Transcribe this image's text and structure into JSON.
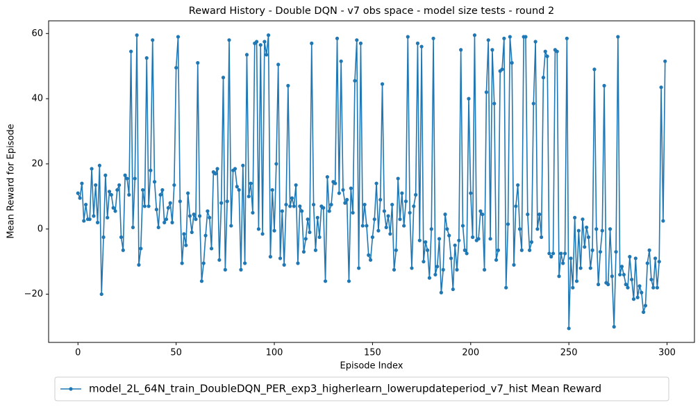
{
  "chart_data": {
    "type": "line",
    "title": "Reward History - Double DQN - v7 obs space - model size tests - round 2",
    "x_label": "Episode Index",
    "y_label": "Mean Reward for Episode",
    "x": [
      0,
      1,
      2,
      3,
      4,
      5,
      6,
      7,
      8,
      9,
      10,
      11,
      12,
      13,
      14,
      15,
      16,
      17,
      18,
      19,
      20,
      21,
      22,
      23,
      24,
      25,
      26,
      27,
      28,
      29,
      30,
      31,
      32,
      33,
      34,
      35,
      36,
      37,
      38,
      39,
      40,
      41,
      42,
      43,
      44,
      45,
      46,
      47,
      48,
      49,
      50,
      51,
      52,
      53,
      54,
      55,
      56,
      57,
      58,
      59,
      60,
      61,
      62,
      63,
      64,
      65,
      66,
      67,
      68,
      69,
      70,
      71,
      72,
      73,
      74,
      75,
      76,
      77,
      78,
      79,
      80,
      81,
      82,
      83,
      84,
      85,
      86,
      87,
      88,
      89,
      90,
      91,
      92,
      93,
      94,
      95,
      96,
      97,
      98,
      99,
      100,
      101,
      102,
      103,
      104,
      105,
      106,
      107,
      108,
      109,
      110,
      111,
      112,
      113,
      114,
      115,
      116,
      117,
      118,
      119,
      120,
      121,
      122,
      123,
      124,
      125,
      126,
      127,
      128,
      129,
      130,
      131,
      132,
      133,
      134,
      135,
      136,
      137,
      138,
      139,
      140,
      141,
      142,
      143,
      144,
      145,
      146,
      147,
      148,
      149,
      150,
      151,
      152,
      153,
      154,
      155,
      156,
      157,
      158,
      159,
      160,
      161,
      162,
      163,
      164,
      165,
      166,
      167,
      168,
      169,
      170,
      171,
      172,
      173,
      174,
      175,
      176,
      177,
      178,
      179,
      180,
      181,
      182,
      183,
      184,
      185,
      186,
      187,
      188,
      189,
      190,
      191,
      192,
      193,
      194,
      195,
      196,
      197,
      198,
      199,
      200,
      201,
      202,
      203,
      204,
      205,
      206,
      207,
      208,
      209,
      210,
      211,
      212,
      213,
      214,
      215,
      216,
      217,
      218,
      219,
      220,
      221,
      222,
      223,
      224,
      225,
      226,
      227,
      228,
      229,
      230,
      231,
      232,
      233,
      234,
      235,
      236,
      237,
      238,
      239,
      240,
      241,
      242,
      243,
      244,
      245,
      246,
      247,
      248,
      249,
      250,
      251,
      252,
      253,
      254,
      255,
      256,
      257,
      258,
      259,
      260,
      261,
      262,
      263,
      264,
      265,
      266,
      267,
      268,
      269,
      270,
      271,
      272,
      273,
      274,
      275,
      276,
      277,
      278,
      279,
      280,
      281,
      282,
      283,
      284,
      285,
      286,
      287,
      288,
      289,
      290,
      291,
      292,
      293,
      294,
      295,
      296,
      297,
      298,
      299
    ],
    "series": [
      {
        "name": "model_2L_64N_train_DoubleDQN_PER_exp3_higherlearn_lowerupdateperiod_v7_hist Mean Reward",
        "color": "#1f77b4",
        "values": [
          11,
          9.5,
          14,
          2.5,
          7.5,
          3,
          3,
          18.5,
          4,
          13.5,
          2,
          19.5,
          -20,
          -2.5,
          16.5,
          3.5,
          11.5,
          10.5,
          6.5,
          5.5,
          12,
          13.5,
          -2.5,
          -6.5,
          16.5,
          15.5,
          10.5,
          54.5,
          0.5,
          15.5,
          59.5,
          -11,
          -6,
          12,
          7,
          52.5,
          7,
          18,
          58,
          14.5,
          6,
          0.5,
          10.5,
          12,
          2,
          3,
          6.5,
          8,
          2,
          13.5,
          49.5,
          59,
          8.5,
          -10.5,
          -1.5,
          -5,
          11,
          4,
          -1,
          4.5,
          3,
          51,
          4,
          -16,
          -10.5,
          -2,
          5.5,
          3.5,
          -6,
          17.5,
          17,
          18.5,
          -9.5,
          8,
          46.5,
          -12.5,
          8.5,
          58,
          1,
          18,
          18.5,
          13,
          12,
          -12.5,
          19.5,
          -10.5,
          53.5,
          10,
          14,
          5,
          57,
          57.5,
          0,
          56.5,
          -1.5,
          57.5,
          53.5,
          59.5,
          -8.5,
          12,
          -0.5,
          20,
          50.5,
          -9,
          5.5,
          -11,
          7.5,
          44,
          7,
          9.5,
          7,
          13.5,
          -10.5,
          7,
          5.5,
          -7,
          -3,
          3,
          -1,
          57,
          7.5,
          -6.5,
          3.5,
          -2.5,
          7,
          6.5,
          -16,
          16,
          5.5,
          7.5,
          14.5,
          14,
          58.5,
          11,
          51.5,
          12,
          8,
          9,
          -16,
          12.5,
          5,
          45.5,
          58,
          -12,
          57,
          1,
          7.5,
          1,
          -8,
          -9.5,
          -2.5,
          3,
          14,
          -0.5,
          9,
          44.5,
          5.5,
          0.5,
          4,
          -1.5,
          7.5,
          -12.5,
          -6.5,
          15.5,
          3,
          11,
          1,
          8.5,
          59,
          5,
          -12,
          7,
          10.5,
          57,
          -3.5,
          56,
          -10,
          -4,
          -6.5,
          -15,
          0,
          58.5,
          -14,
          -11.5,
          -3,
          -19.5,
          -12.5,
          4.5,
          0,
          -2,
          -9,
          -18.5,
          -5,
          -12.5,
          -3.5,
          55,
          1,
          -6.5,
          -7.5,
          40,
          11,
          -2.5,
          59.5,
          -3.5,
          -3,
          5.5,
          4.5,
          -12.5,
          42,
          58,
          -3,
          55,
          38.5,
          -9.5,
          -6.5,
          48.5,
          49,
          58.5,
          -18,
          1.5,
          59,
          51,
          -11,
          7,
          13.5,
          0,
          -6.5,
          59,
          59,
          4.5,
          -6.5,
          -4,
          38.5,
          57.5,
          0,
          4.5,
          -2.5,
          46.5,
          54.5,
          53,
          -7.5,
          -8.5,
          -7.5,
          55,
          54.5,
          -14.5,
          -7.5,
          -10.5,
          -7.5,
          58.5,
          -30.5,
          -9,
          -18,
          3.5,
          -16,
          -0.5,
          -12,
          3,
          -5.5,
          0.5,
          -2.5,
          -12,
          -6.5,
          49,
          0,
          -17,
          -7,
          -0.5,
          44,
          -16.5,
          -17,
          0,
          -14.5,
          -30,
          -7,
          59,
          -14,
          -11.5,
          -14,
          -17,
          -18,
          -8.5,
          -15.5,
          -21.5,
          -9,
          -21,
          -17.5,
          -19.5,
          -25.5,
          -23.5,
          -10.5,
          -6.5,
          -15.5,
          -18,
          -9,
          -18,
          -10,
          43.5,
          2.5,
          51.5
        ]
      }
    ],
    "xlim": [
      -14.95,
      313.95
    ],
    "ylim": [
      -34.8,
      63.9
    ],
    "xticks": [
      0,
      50,
      100,
      150,
      200,
      250,
      300
    ],
    "yticks": [
      {
        "value": -20,
        "label": "−20"
      },
      0,
      20,
      40,
      60
    ],
    "legend": "lower center outside",
    "grid": false
  }
}
